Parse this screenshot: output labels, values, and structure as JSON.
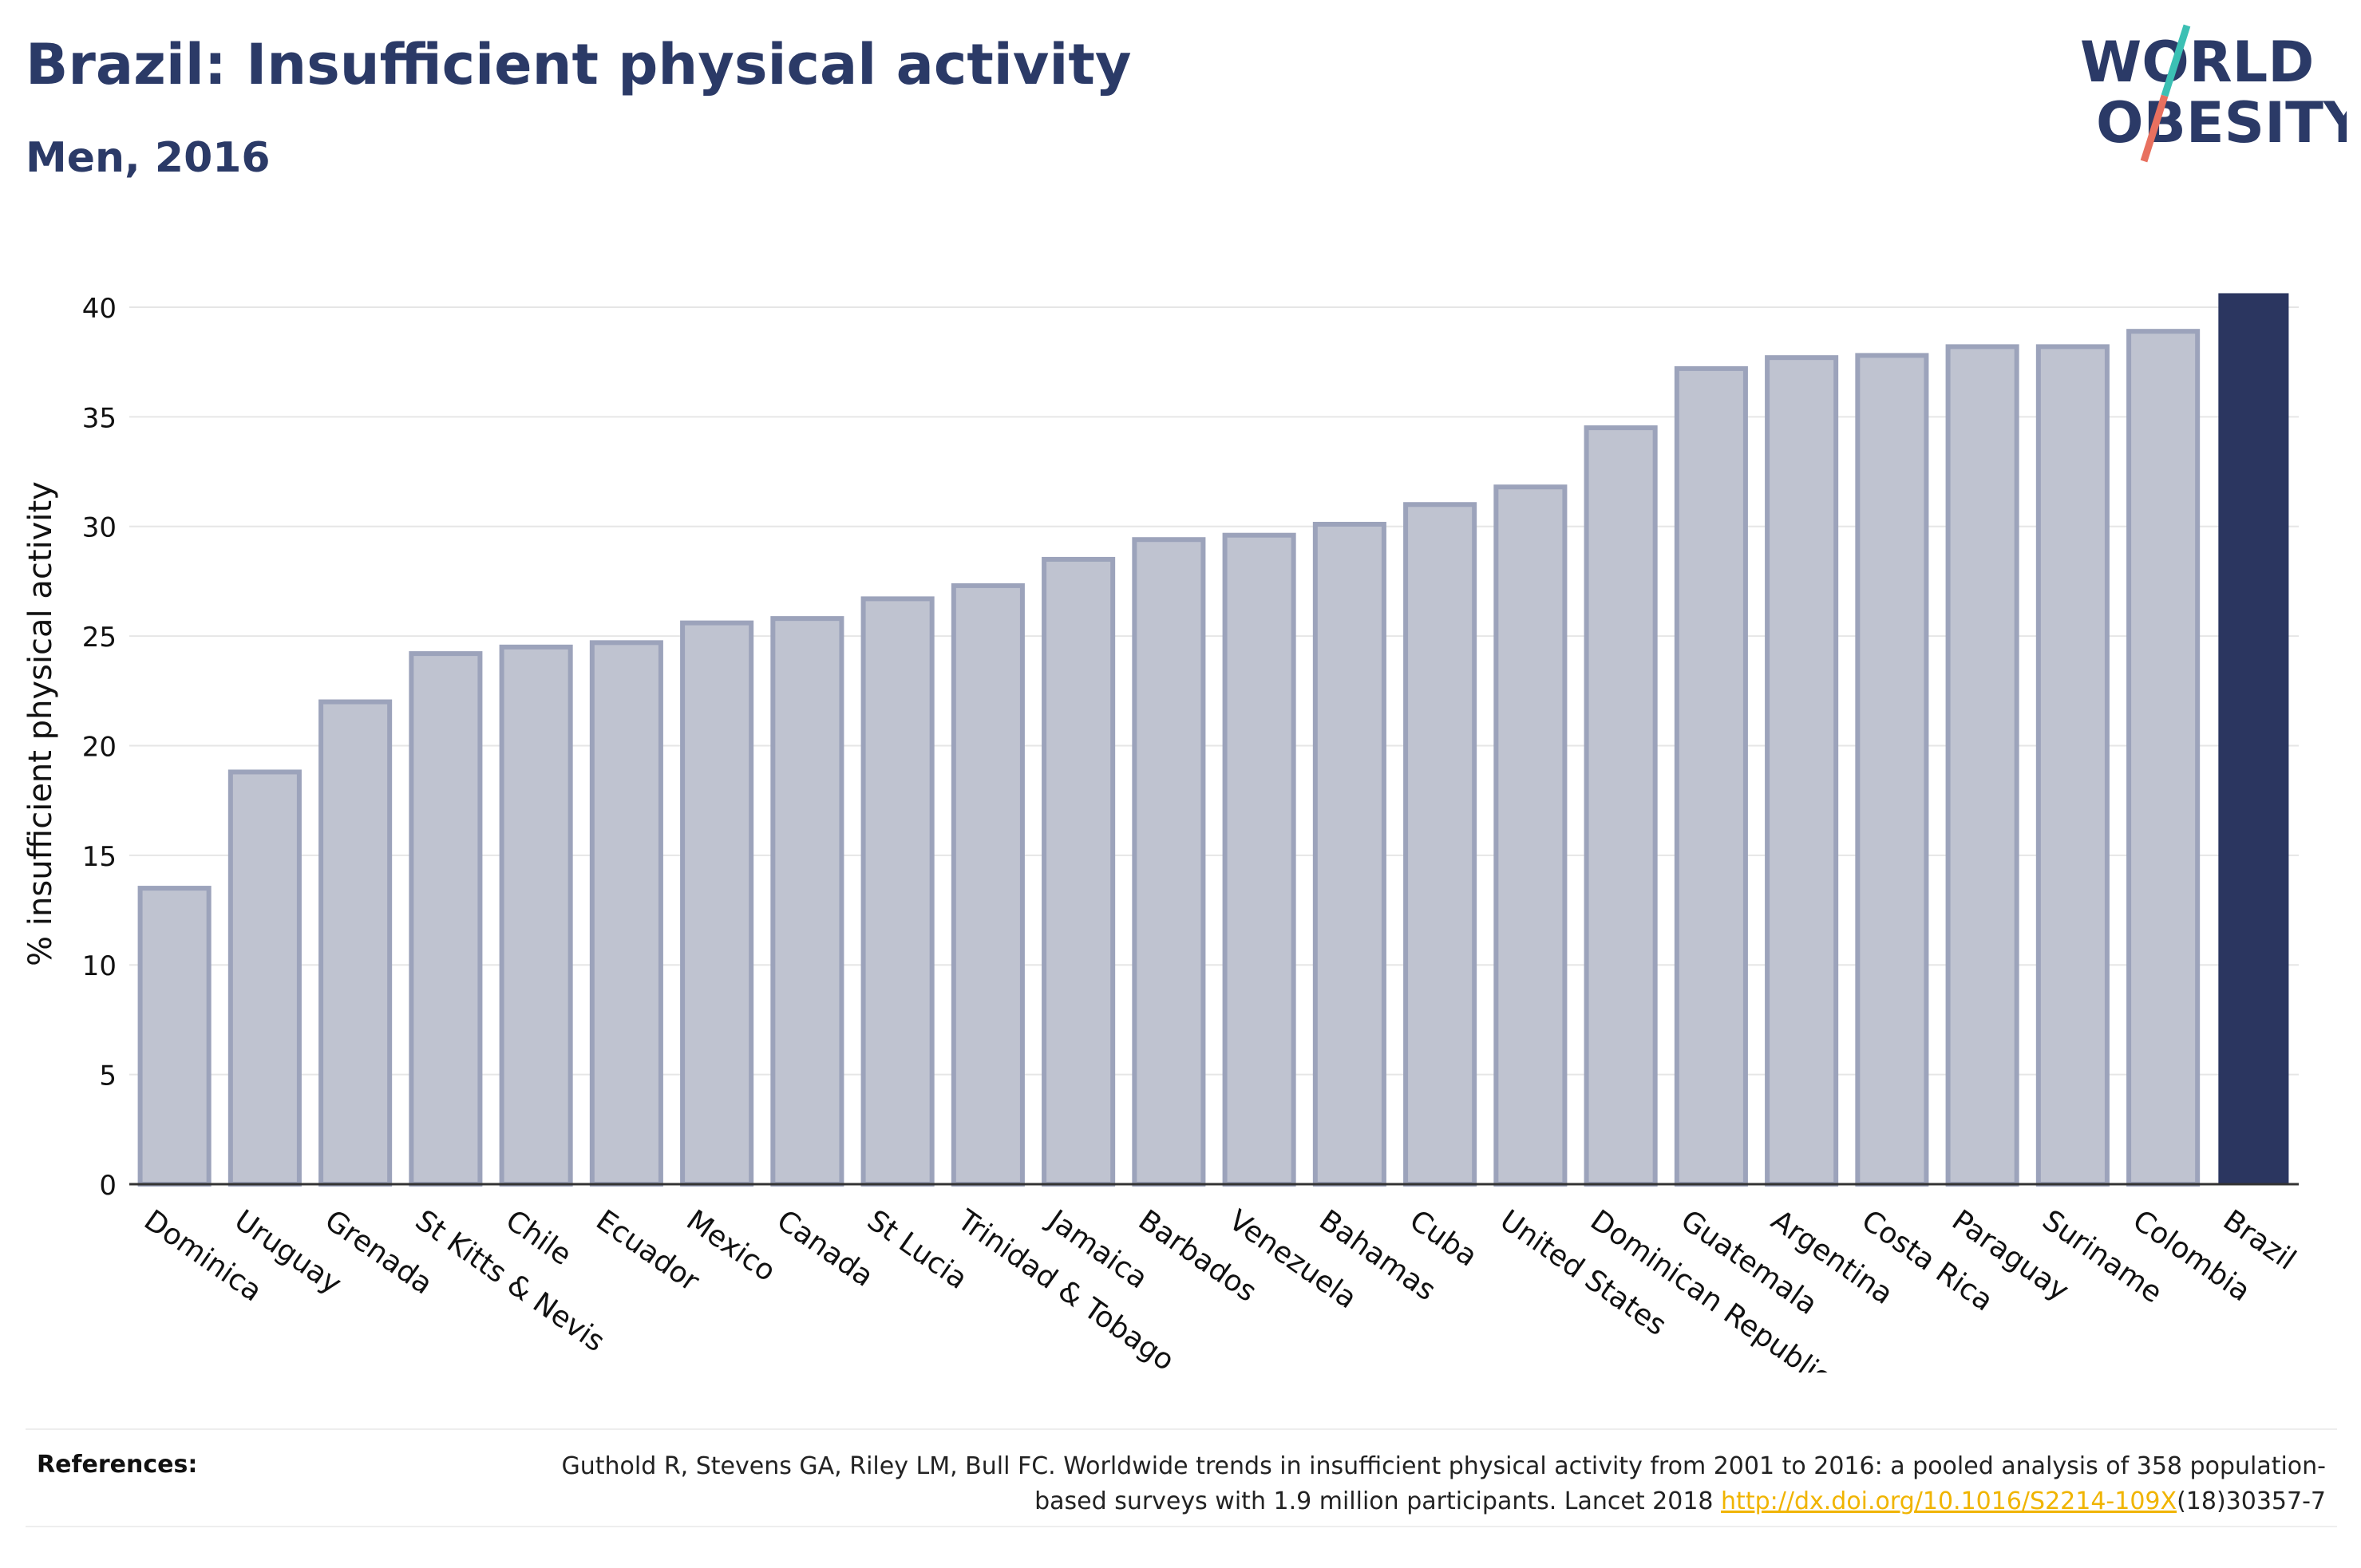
{
  "header": {
    "title": "Brazil: Insufficient physical activity",
    "subtitle": "Men, 2016"
  },
  "logo": {
    "line1": "WORLD",
    "line2": "OBESITY",
    "icon": "world-obesity-logo",
    "slash_colors": [
      "#3cc0b4",
      "#e8705f"
    ]
  },
  "chart_data": {
    "type": "bar",
    "ylabel": "% insufficient physical activity",
    "ylim": [
      0,
      42
    ],
    "yticks": [
      0,
      5,
      10,
      15,
      20,
      25,
      30,
      35,
      40
    ],
    "grid": true,
    "categories": [
      "Dominica",
      "Uruguay",
      "Grenada",
      "St Kitts & Nevis",
      "Chile",
      "Ecuador",
      "Mexico",
      "Canada",
      "St Lucia",
      "Trinidad & Tobago",
      "Jamaica",
      "Barbados",
      "Venezuela",
      "Bahamas",
      "Cuba",
      "United States",
      "Dominican Republic",
      "Guatemala",
      "Argentina",
      "Costa Rica",
      "Paraguay",
      "Suriname",
      "Colombia",
      "Brazil"
    ],
    "values": [
      13.5,
      18.8,
      22.0,
      24.2,
      24.5,
      24.7,
      25.6,
      25.8,
      26.7,
      27.3,
      28.5,
      29.4,
      29.6,
      30.1,
      31.0,
      31.8,
      34.5,
      37.2,
      37.7,
      37.8,
      38.2,
      38.2,
      38.9,
      40.6
    ],
    "highlight": "Brazil",
    "colors": {
      "bar_fill": "#bfc3d0",
      "bar_stroke": "#9ca3bb",
      "highlight": "#2b3660",
      "grid": "#e6e6e6"
    }
  },
  "references": {
    "label": "References:",
    "text_before": "Guthold R, Stevens GA, Riley LM, Bull FC. Worldwide trends in insufficient physical activity from 2001 to 2016: a pooled analysis of 358 population-based surveys with 1.9 million participants. Lancet 2018 ",
    "link": "http://dx.doi.org/10.1016/S2214-109X",
    "text_after": "(18)30357-7"
  }
}
